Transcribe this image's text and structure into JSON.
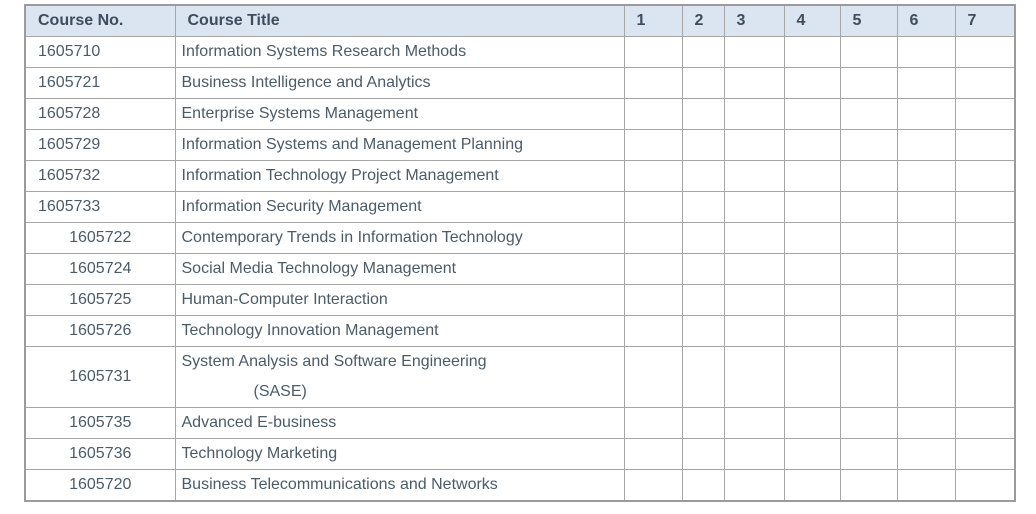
{
  "colors": {
    "header_background": "#dbe5f1",
    "header_text": "#3d4d5c",
    "body_text": "#4c5b68",
    "grid_line": "#a6a6a6",
    "page_background": "#ffffff"
  },
  "table": {
    "columns": [
      {
        "label": "Course No."
      },
      {
        "label": "Course Title"
      },
      {
        "label": "1"
      },
      {
        "label": "2"
      },
      {
        "label": "3"
      },
      {
        "label": "4"
      },
      {
        "label": "5"
      },
      {
        "label": "6"
      },
      {
        "label": "7"
      }
    ],
    "mark_column_count": 7,
    "rows": [
      {
        "course_no": "1605710",
        "title": "Information Systems Research Methods",
        "number_align": "left"
      },
      {
        "course_no": "1605721",
        "title": "Business Intelligence and Analytics",
        "number_align": "left"
      },
      {
        "course_no": "1605728",
        "title": "Enterprise Systems Management",
        "number_align": "left"
      },
      {
        "course_no": "1605729",
        "title": "Information Systems and Management Planning",
        "number_align": "left"
      },
      {
        "course_no": "1605732",
        "title": "Information Technology Project Management",
        "number_align": "left"
      },
      {
        "course_no": "1605733",
        "title": "Information Security Management",
        "number_align": "left"
      },
      {
        "course_no": "1605722",
        "title": "Contemporary Trends in Information Technology",
        "number_align": "center"
      },
      {
        "course_no": "1605724",
        "title": "Social Media Technology Management",
        "number_align": "center"
      },
      {
        "course_no": "1605725",
        "title": "Human-Computer Interaction",
        "number_align": "center"
      },
      {
        "course_no": "1605726",
        "title": "Technology Innovation Management",
        "number_align": "center"
      },
      {
        "course_no": "1605731",
        "title": "System Analysis and Software Engineering",
        "title_line2": "(SASE)",
        "number_align": "center"
      },
      {
        "course_no": "1605735",
        "title": "Advanced E-business",
        "number_align": "center"
      },
      {
        "course_no": "1605736",
        "title": "Technology Marketing",
        "number_align": "center"
      },
      {
        "course_no": "1605720",
        "title": "Business Telecommunications and Networks",
        "number_align": "center"
      }
    ]
  }
}
